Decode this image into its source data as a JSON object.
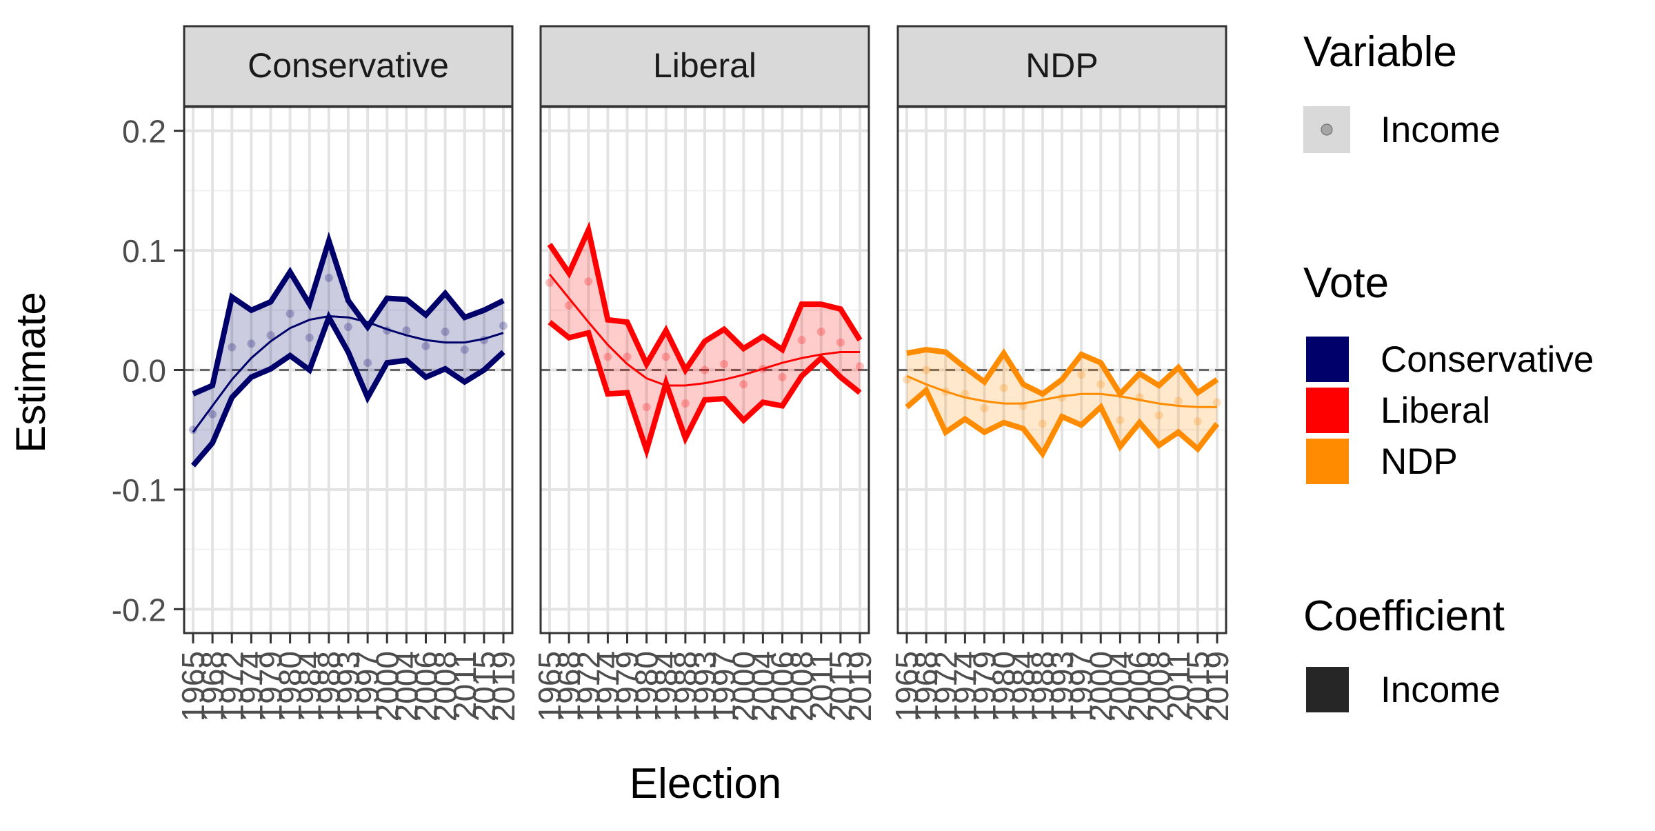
{
  "chart_data": {
    "type": "line",
    "xlabel": "Election",
    "ylabel": "Estimate",
    "ylim": [
      -0.22,
      0.22
    ],
    "y_ticks": [
      "0.2",
      "0.1",
      "0.0",
      "-0.1",
      "-0.2"
    ],
    "x_tick_labels": [
      "1965",
      "1968",
      "1972",
      "1974",
      "1979",
      "1980",
      "1984",
      "1988",
      "1993",
      "1997",
      "2000",
      "2004",
      "2006",
      "2008",
      "2011",
      "2015",
      "2019"
    ],
    "reference_line": 0,
    "grid": true,
    "panels": [
      {
        "name": "Conservative",
        "color": "#00006B",
        "upper": [
          -0.02,
          -0.013,
          0.061,
          0.05,
          0.057,
          0.082,
          0.055,
          0.108,
          0.058,
          0.036,
          0.06,
          0.059,
          0.046,
          0.064,
          0.044,
          0.05,
          0.058
        ],
        "lower": [
          -0.08,
          -0.061,
          -0.023,
          -0.006,
          0.001,
          0.012,
          0.0,
          0.044,
          0.015,
          -0.023,
          0.006,
          0.008,
          -0.006,
          0.001,
          -0.01,
          0.0,
          0.015
        ],
        "points": [
          -0.05,
          -0.037,
          0.019,
          0.022,
          0.029,
          0.047,
          0.027,
          0.077,
          0.036,
          0.006,
          0.033,
          0.033,
          0.02,
          0.032,
          0.017,
          0.025,
          0.037
        ],
        "smooth": [
          -0.052,
          -0.03,
          -0.008,
          0.01,
          0.024,
          0.035,
          0.042,
          0.045,
          0.044,
          0.04,
          0.034,
          0.029,
          0.025,
          0.023,
          0.023,
          0.026,
          0.031
        ]
      },
      {
        "name": "Liberal",
        "color": "#FF0000",
        "upper": [
          0.105,
          0.081,
          0.117,
          0.042,
          0.04,
          0.005,
          0.033,
          0.0,
          0.024,
          0.034,
          0.018,
          0.028,
          0.017,
          0.055,
          0.055,
          0.051,
          0.025
        ],
        "lower": [
          0.04,
          0.027,
          0.031,
          -0.02,
          -0.019,
          -0.067,
          -0.011,
          -0.057,
          -0.025,
          -0.024,
          -0.042,
          -0.027,
          -0.03,
          -0.005,
          0.01,
          -0.006,
          -0.019
        ],
        "points": [
          0.073,
          0.054,
          0.074,
          0.011,
          0.011,
          -0.031,
          0.011,
          -0.028,
          0.0,
          0.005,
          -0.012,
          0.001,
          -0.006,
          0.025,
          0.032,
          0.023,
          0.003
        ],
        "smooth": [
          0.08,
          0.06,
          0.04,
          0.021,
          0.005,
          -0.007,
          -0.013,
          -0.013,
          -0.011,
          -0.008,
          -0.004,
          0.001,
          0.006,
          0.01,
          0.013,
          0.015,
          0.015
        ]
      },
      {
        "name": "NDP",
        "color": "#FF8C00",
        "upper": [
          0.014,
          0.017,
          0.015,
          0.002,
          -0.01,
          0.014,
          -0.012,
          -0.02,
          -0.008,
          0.013,
          0.006,
          -0.02,
          -0.003,
          -0.013,
          0.002,
          -0.019,
          -0.008
        ],
        "lower": [
          -0.031,
          -0.017,
          -0.052,
          -0.041,
          -0.052,
          -0.044,
          -0.049,
          -0.07,
          -0.039,
          -0.046,
          -0.031,
          -0.064,
          -0.044,
          -0.063,
          -0.052,
          -0.066,
          -0.045
        ],
        "points": [
          -0.008,
          0.0,
          -0.018,
          -0.02,
          -0.032,
          -0.015,
          -0.03,
          -0.045,
          -0.023,
          -0.004,
          -0.012,
          -0.042,
          -0.023,
          -0.038,
          -0.026,
          -0.043,
          -0.027
        ],
        "smooth": [
          -0.005,
          -0.012,
          -0.018,
          -0.023,
          -0.026,
          -0.028,
          -0.028,
          -0.025,
          -0.022,
          -0.02,
          -0.02,
          -0.022,
          -0.025,
          -0.028,
          -0.03,
          -0.031,
          -0.031
        ]
      }
    ],
    "legend": {
      "placement": "right",
      "groups": [
        {
          "title": "Variable",
          "items": [
            {
              "label": "Income",
              "key": "point",
              "color": "#999999"
            }
          ]
        },
        {
          "title": "Vote",
          "items": [
            {
              "label": "Conservative",
              "key": "fill",
              "color": "#00006B"
            },
            {
              "label": "Liberal",
              "key": "fill",
              "color": "#FF0000"
            },
            {
              "label": "NDP",
              "key": "fill",
              "color": "#FF8C00"
            }
          ]
        },
        {
          "title": "Coefficient",
          "items": [
            {
              "label": "Income",
              "key": "fill",
              "color": "#262626"
            }
          ]
        }
      ]
    }
  }
}
